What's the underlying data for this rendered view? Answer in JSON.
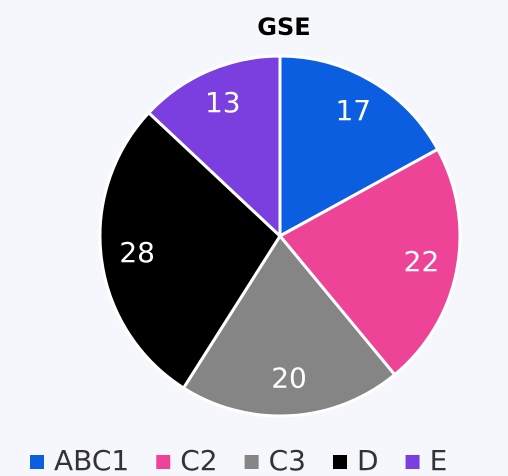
{
  "chart_data": {
    "type": "pie",
    "title": "GSE",
    "categories": [
      "ABC1",
      "C2",
      "C3",
      "D",
      "E"
    ],
    "values": [
      17,
      22,
      20,
      28,
      13
    ],
    "colors": [
      "#0b5ee0",
      "#ee4498",
      "#858585",
      "#000000",
      "#7b3fe0"
    ],
    "legend": "bottom"
  }
}
